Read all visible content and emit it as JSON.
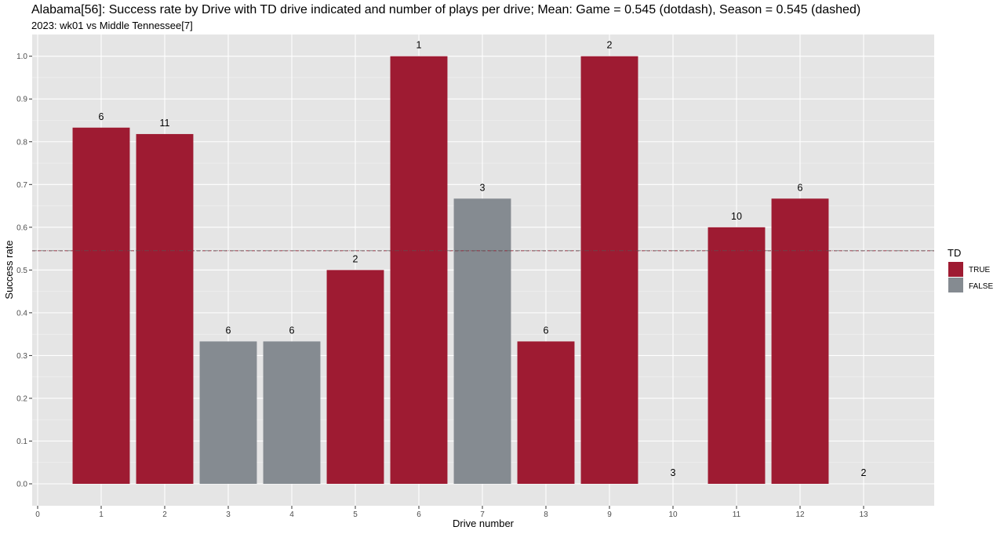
{
  "chart_data": {
    "type": "bar",
    "title": "Alabama[56]: Success rate by Drive with TD drive indicated and number of plays per drive; Mean: Game = 0.545 (dotdash), Season = 0.545 (dashed)",
    "subtitle": "2023: wk01 vs Middle Tennessee[7]",
    "xlabel": "Drive number",
    "ylabel": "Success rate",
    "xlim": [
      0,
      14
    ],
    "ylim": [
      0,
      1.0
    ],
    "x_ticks": [
      "0",
      "1",
      "2",
      "3",
      "4",
      "5",
      "6",
      "7",
      "8",
      "9",
      "10",
      "11",
      "12",
      "13"
    ],
    "y_ticks": [
      "0.0",
      "0.1",
      "0.2",
      "0.3",
      "0.4",
      "0.5",
      "0.6",
      "0.7",
      "0.8",
      "0.9",
      "1.0"
    ],
    "game_mean": 0.545,
    "season_mean": 0.545,
    "legend": {
      "title": "TD",
      "placement": "right",
      "entries": [
        {
          "label": "TRUE",
          "color": "#9E1B32"
        },
        {
          "label": "FALSE",
          "color": "#858B91"
        }
      ]
    },
    "bars": [
      {
        "drive": 1,
        "value": 0.833,
        "td": true,
        "plays": "6"
      },
      {
        "drive": 2,
        "value": 0.818,
        "td": true,
        "plays": "11"
      },
      {
        "drive": 3,
        "value": 0.333,
        "td": false,
        "plays": "6"
      },
      {
        "drive": 4,
        "value": 0.333,
        "td": false,
        "plays": "6"
      },
      {
        "drive": 5,
        "value": 0.5,
        "td": true,
        "plays": "2"
      },
      {
        "drive": 6,
        "value": 1.0,
        "td": true,
        "plays": "1"
      },
      {
        "drive": 7,
        "value": 0.667,
        "td": false,
        "plays": "3"
      },
      {
        "drive": 8,
        "value": 0.333,
        "td": true,
        "plays": "6"
      },
      {
        "drive": 9,
        "value": 1.0,
        "td": true,
        "plays": "2"
      },
      {
        "drive": 10,
        "value": 0.0,
        "td": false,
        "plays": "3"
      },
      {
        "drive": 11,
        "value": 0.6,
        "td": true,
        "plays": "10"
      },
      {
        "drive": 12,
        "value": 0.667,
        "td": true,
        "plays": "6"
      },
      {
        "drive": 13,
        "value": 0.0,
        "td": false,
        "plays": "2"
      }
    ],
    "colors": {
      "panel": "#E5E5E5",
      "grid": "#FFFFFF",
      "true": "#9E1B32",
      "false": "#858B91",
      "mean_line": "#9E1B32"
    }
  }
}
